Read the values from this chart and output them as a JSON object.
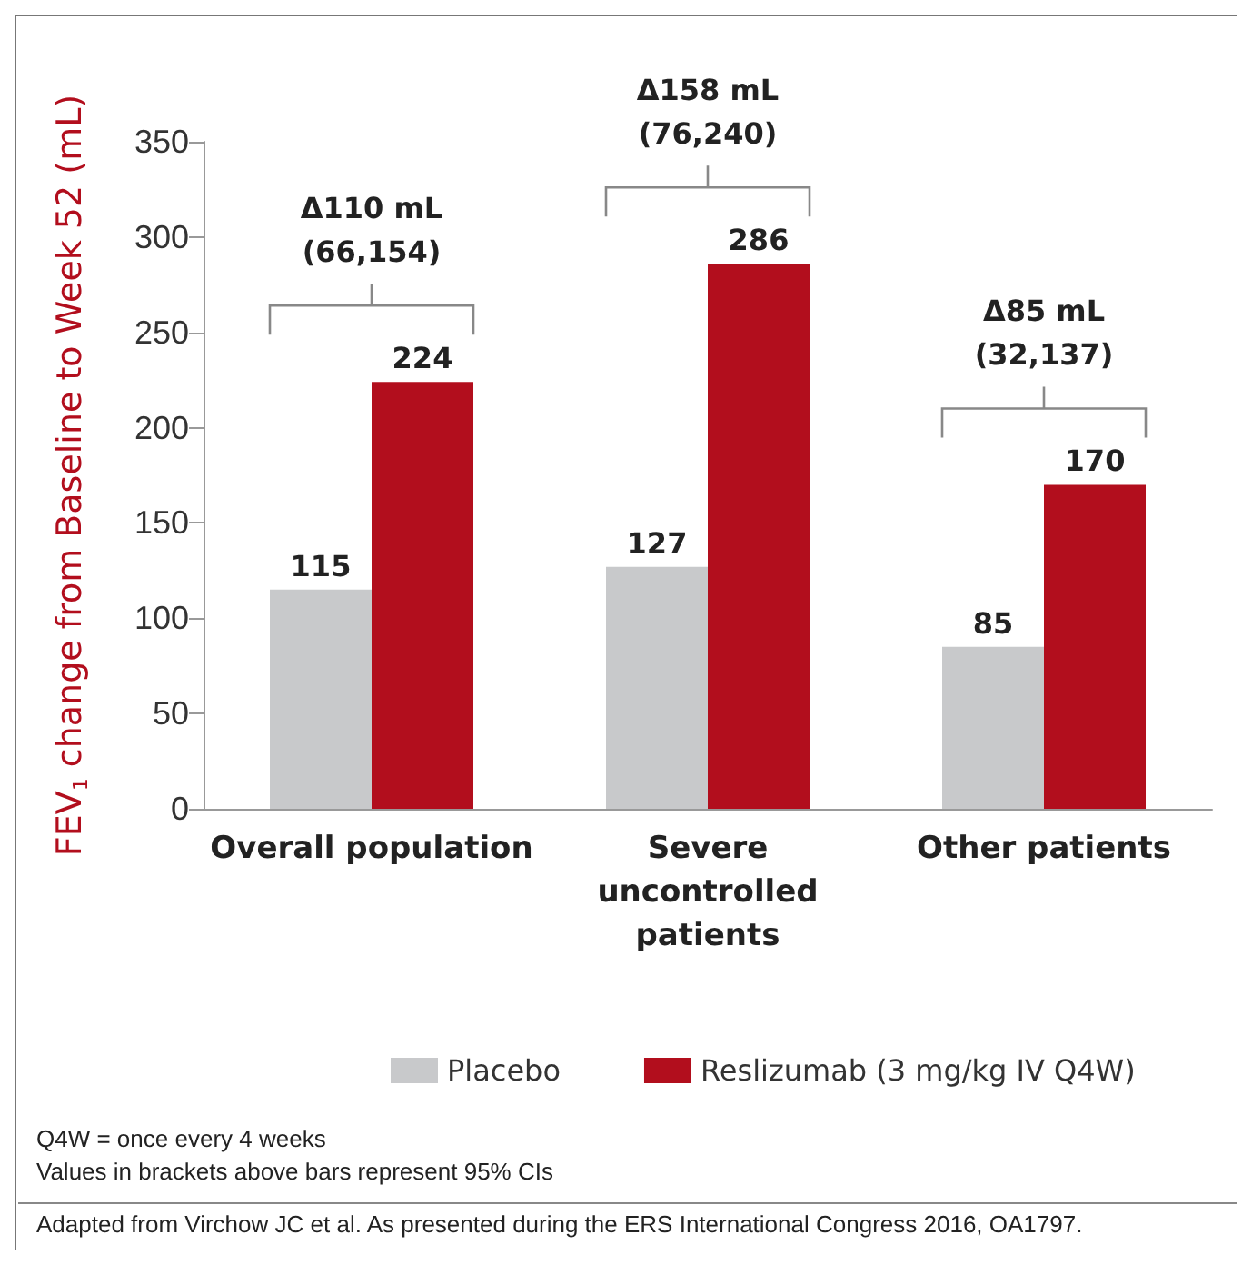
{
  "chart_data": {
    "type": "bar",
    "ylabel": "FEV$_{1}$ change from Baseline to Week 52 (mL)",
    "categories": [
      "Overall population",
      "Severe\nuncontrolled\npatients",
      "Other patients"
    ],
    "series": [
      {
        "name": "Placebo",
        "color": "#c8c9cb",
        "values": [
          115,
          127,
          85
        ]
      },
      {
        "name": "Reslizumab (3 mg/kg IV Q4W)",
        "color": "#b20e1d",
        "values": [
          224,
          286,
          170
        ]
      }
    ],
    "ylim": [
      0,
      350
    ],
    "yticks": [
      0,
      50,
      100,
      150,
      200,
      250,
      300,
      350
    ],
    "grid": false,
    "legend": "bottom",
    "data_labels": true,
    "annotations": [
      "Δ110 mL\n(66,154)",
      "Δ158 mL\n(76,240)",
      "Δ85 mL\n(32,137)",
      "Q4W = once every 4 weeks",
      "Values in brackets above bars represent 95% CIs",
      "Adapted from Virchow JC et al. As presented during the ERS International Congress 2016, OA1797."
    ]
  }
}
